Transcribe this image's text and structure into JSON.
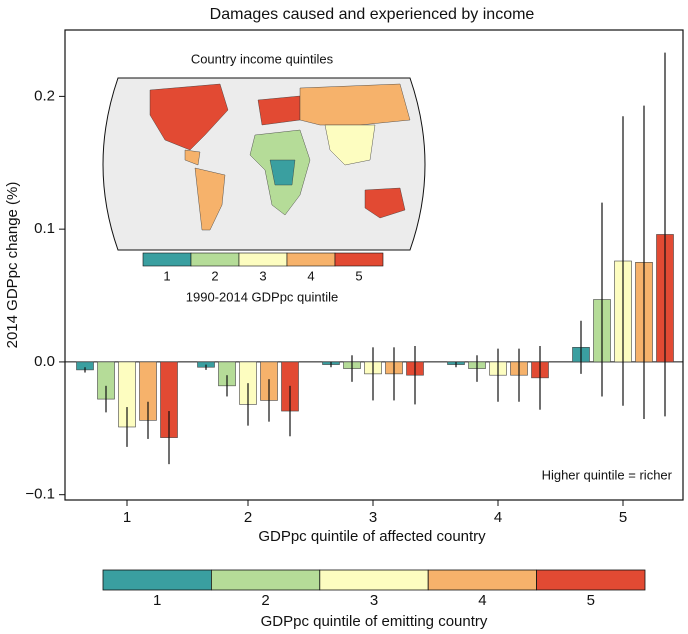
{
  "chart_data": {
    "type": "bar",
    "title": "Damages caused and experienced by income",
    "x_label": "GDPpc quintile of affected country",
    "y_label": "2014 GDPpc change (%)",
    "legend_title": "GDPpc quintile of emitting country",
    "annotation": "Higher quintile = richer",
    "categories": [
      "1",
      "2",
      "3",
      "4",
      "5"
    ],
    "ylim": [
      -0.104,
      0.25
    ],
    "yticks": [
      {
        "value": -0.1,
        "label": "−0.1"
      },
      {
        "value": 0,
        "label": "0.0"
      },
      0.1,
      0.2
    ],
    "series": [
      {
        "name": "1",
        "color": "#3a9fa0",
        "values": [
          -0.006,
          -0.004,
          -0.002,
          -0.002,
          0.011
        ],
        "errors": [
          0.002,
          0.002,
          0.002,
          0.002,
          0.02
        ]
      },
      {
        "name": "2",
        "color": "#b5dc98",
        "values": [
          -0.028,
          -0.018,
          -0.005,
          -0.005,
          0.047
        ],
        "errors": [
          0.01,
          0.008,
          0.01,
          0.01,
          0.073
        ]
      },
      {
        "name": "3",
        "color": "#fdfdc0",
        "values": [
          -0.049,
          -0.032,
          -0.009,
          -0.01,
          0.076
        ],
        "errors": [
          0.015,
          0.016,
          0.02,
          0.02,
          0.109
        ]
      },
      {
        "name": "4",
        "color": "#f6b26b",
        "values": [
          -0.044,
          -0.029,
          -0.009,
          -0.01,
          0.075
        ],
        "errors": [
          0.014,
          0.016,
          0.02,
          0.02,
          0.118
        ]
      },
      {
        "name": "5",
        "color": "#e24a33",
        "values": [
          -0.057,
          -0.037,
          -0.01,
          -0.012,
          0.096
        ],
        "errors": [
          0.02,
          0.019,
          0.022,
          0.024,
          0.137
        ]
      }
    ],
    "inset": {
      "title": "Country income quintiles",
      "colorbar_label": "1990-2014 GDPpc quintile",
      "colorbar_ticks": [
        "1",
        "2",
        "3",
        "4",
        "5"
      ]
    }
  }
}
